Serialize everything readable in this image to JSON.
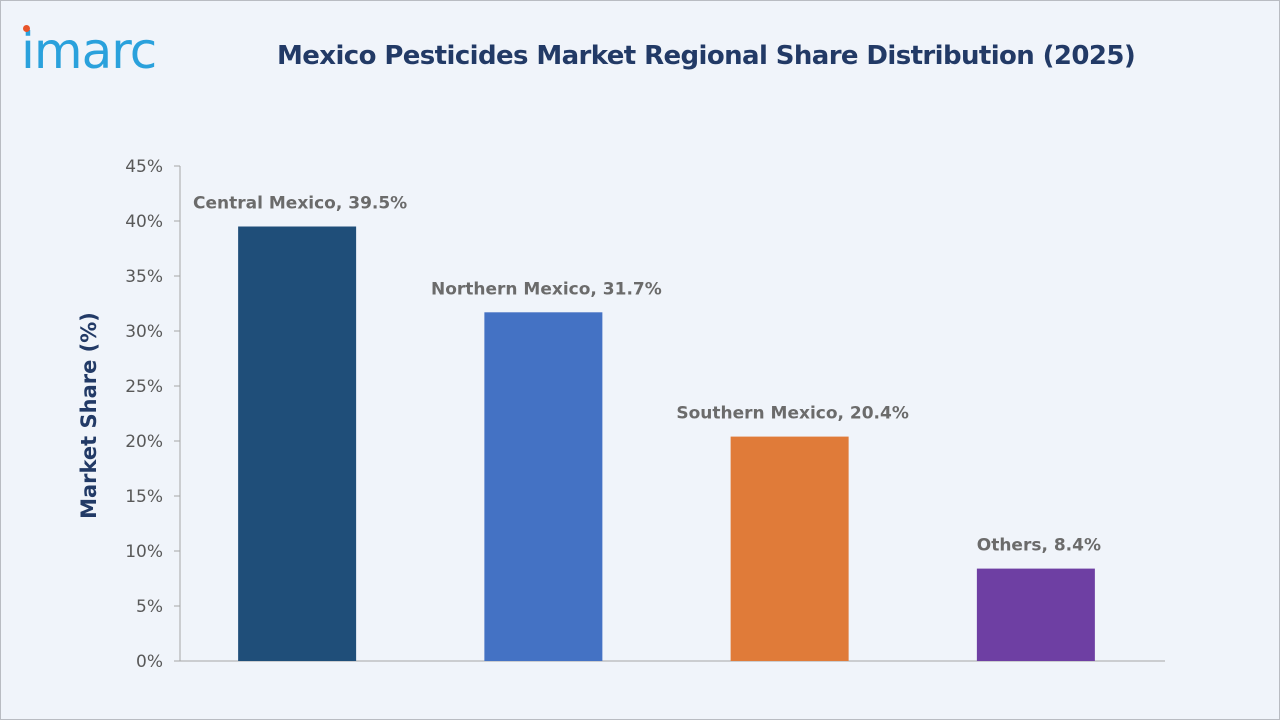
{
  "header": {
    "logo_text": "imarc",
    "title": "Mexico Pesticides Market Regional Share Distribution (2025)"
  },
  "colors": {
    "background": "#f0f4fa",
    "title": "#223a66",
    "axis": "#a6a6a6",
    "tick_label": "#595959",
    "data_label": "#6b6b6b",
    "logo": "#2aa1dc",
    "logo_accent": "#e8542a"
  },
  "chart_data": {
    "type": "bar",
    "title": "Mexico Pesticides Market Regional Share Distribution (2025)",
    "xlabel": "",
    "ylabel": "Market Share (%)",
    "ylim": [
      0,
      45
    ],
    "yticks": [
      0,
      5,
      10,
      15,
      20,
      25,
      30,
      35,
      40,
      45
    ],
    "ytick_labels": [
      "0%",
      "5%",
      "10%",
      "15%",
      "20%",
      "25%",
      "30%",
      "35%",
      "40%",
      "45%"
    ],
    "grid": false,
    "legend": "none",
    "categories": [
      "Central Mexico",
      "Northern Mexico",
      "Southern Mexico",
      "Others"
    ],
    "values": [
      39.5,
      31.7,
      20.4,
      8.4
    ],
    "data_labels": [
      "Central Mexico, 39.5%",
      "Northern Mexico, 31.7%",
      "Southern Mexico, 20.4%",
      "Others, 8.4%"
    ],
    "bar_colors": [
      "#1f4e79",
      "#4472c4",
      "#e07b39",
      "#6e3fa3"
    ]
  }
}
